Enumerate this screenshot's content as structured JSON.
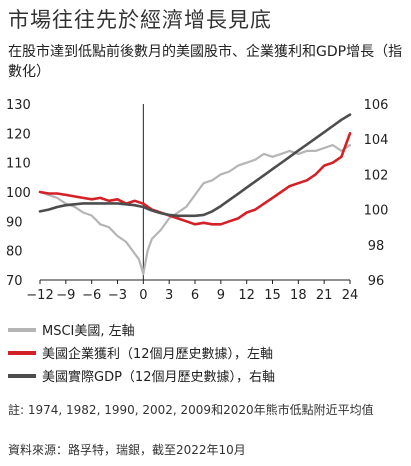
{
  "title": "市場往往先於經濟增長見底",
  "subtitle": "在股市達到低點前後數月的美國股市、企業獲利和GDP增長（指數化）",
  "legend": [
    {
      "label": "MSCI美國, 左軸",
      "color": "#b5b5b5"
    },
    {
      "label": "美國企業獲利（12個月歷史數據），左軸",
      "color": "#d42027"
    },
    {
      "label": "美國實際GDP（12個月歷史數據），右軸",
      "color": "#4d4d4d"
    }
  ],
  "note": "註: 1974, 1982, 1990, 2002, 2009和2020年熊市低點附近平均值",
  "source": "資料來源：路孚特，瑞銀，截至2022年10月",
  "chart_data": {
    "type": "line",
    "x_ticks": [
      -12,
      -9,
      -6,
      -3,
      0,
      3,
      6,
      9,
      12,
      15,
      18,
      21,
      24
    ],
    "x_tick_labels": [
      "−12",
      "−9",
      "−6",
      "−3",
      "0",
      "3",
      "6",
      "9",
      "12",
      "15",
      "18",
      "21",
      "24"
    ],
    "xlim": [
      -12,
      24
    ],
    "y_left": {
      "lim": [
        70,
        130
      ],
      "ticks": [
        70,
        80,
        90,
        100,
        110,
        120,
        130
      ]
    },
    "y_right": {
      "lim": [
        96,
        106
      ],
      "ticks": [
        96,
        98,
        100,
        102,
        104,
        106
      ]
    },
    "vline_x": 0,
    "series": [
      {
        "name": "MSCI美國, 左軸",
        "axis": "left",
        "color": "#b5b5b5",
        "x": [
          -12,
          -11,
          -10,
          -9,
          -8,
          -7,
          -6,
          -5,
          -4,
          -3,
          -2,
          -1,
          -0.5,
          0,
          0.5,
          1,
          2,
          3,
          4,
          5,
          6,
          7,
          8,
          9,
          10,
          11,
          12,
          13,
          14,
          15,
          16,
          17,
          18,
          19,
          20,
          21,
          22,
          23,
          24
        ],
        "y": [
          100,
          99,
          98,
          96,
          95,
          93,
          92,
          89,
          88,
          85,
          83,
          79,
          77,
          72,
          80,
          84,
          87,
          91,
          93,
          95,
          99,
          103,
          104,
          106,
          107,
          109,
          110,
          111,
          113,
          112,
          113,
          114,
          113,
          114,
          114,
          115,
          116,
          114,
          116
        ]
      },
      {
        "name": "美國企業獲利（12個月歷史數據），左軸",
        "axis": "left",
        "color": "#d42027",
        "x": [
          -12,
          -11,
          -10,
          -9,
          -8,
          -7,
          -6,
          -5,
          -4,
          -3,
          -2,
          -1,
          0,
          1,
          2,
          3,
          4,
          5,
          6,
          7,
          8,
          9,
          10,
          11,
          12,
          13,
          14,
          15,
          16,
          17,
          18,
          19,
          20,
          21,
          22,
          23,
          24
        ],
        "y": [
          100,
          99.5,
          99.5,
          99,
          98.5,
          98,
          97.5,
          98,
          97,
          97.5,
          96,
          97,
          96,
          94,
          93,
          92,
          91,
          90,
          89,
          89.5,
          89,
          89,
          90,
          91,
          93,
          94,
          96,
          98,
          100,
          102,
          103,
          104,
          106,
          109,
          110,
          112,
          120
        ]
      },
      {
        "name": "美國實際GDP（12個月歷史數據），右軸",
        "axis": "right",
        "color": "#4d4d4d",
        "x": [
          -12,
          -11,
          -10,
          -9,
          -8,
          -7,
          -6,
          -5,
          -4,
          -3,
          -2,
          -1,
          0,
          1,
          2,
          3,
          4,
          5,
          6,
          7,
          8,
          9,
          10,
          11,
          12,
          13,
          14,
          15,
          16,
          17,
          18,
          19,
          20,
          21,
          22,
          23,
          24
        ],
        "y": [
          99.9,
          100.0,
          100.15,
          100.25,
          100.3,
          100.35,
          100.35,
          100.35,
          100.35,
          100.35,
          100.3,
          100.25,
          100.15,
          99.95,
          99.8,
          99.7,
          99.65,
          99.65,
          99.65,
          99.7,
          99.9,
          100.2,
          100.55,
          100.9,
          101.25,
          101.6,
          101.95,
          102.3,
          102.65,
          103.0,
          103.35,
          103.7,
          104.05,
          104.4,
          104.75,
          105.1,
          105.4
        ]
      }
    ]
  }
}
